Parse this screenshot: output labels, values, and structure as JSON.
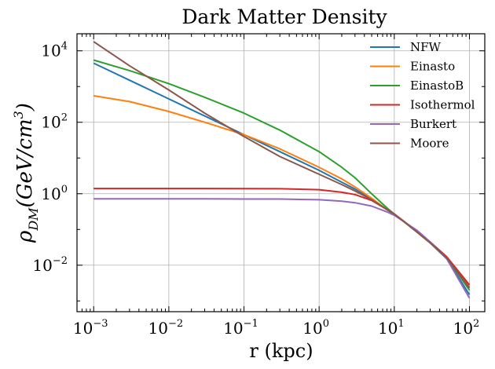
{
  "chart_data": {
    "type": "line",
    "title": "Dark Matter Density",
    "xlabel": "r (kpc)",
    "ylabel_parts": [
      "ρ",
      "DM",
      "(",
      "GeV/cm",
      "3",
      ")"
    ],
    "xscale": "log",
    "yscale": "log",
    "xlim": [
      0.0006,
      160
    ],
    "ylim": [
      0.0005,
      30000
    ],
    "xticks": [
      {
        "value": 0.001,
        "base": "10",
        "exp": "−3"
      },
      {
        "value": 0.01,
        "base": "10",
        "exp": "−2"
      },
      {
        "value": 0.1,
        "base": "10",
        "exp": "−1"
      },
      {
        "value": 1,
        "base": "10",
        "exp": "0"
      },
      {
        "value": 10,
        "base": "10",
        "exp": "1"
      },
      {
        "value": 100,
        "base": "10",
        "exp": "2"
      }
    ],
    "yticks": [
      {
        "value": 0.01,
        "base": "10",
        "exp": "−2"
      },
      {
        "value": 1,
        "base": "10",
        "exp": "0"
      },
      {
        "value": 100,
        "base": "10",
        "exp": "2"
      },
      {
        "value": 10000,
        "base": "10",
        "exp": "4"
      }
    ],
    "grid": true,
    "legend_position": "top-right",
    "x": [
      0.001,
      0.003,
      0.01,
      0.03,
      0.1,
      0.3,
      1,
      2,
      3,
      5,
      8,
      10,
      20,
      30,
      50,
      100
    ],
    "series": [
      {
        "name": "NFW",
        "color": "#1f77b4",
        "values": [
          4500,
          1500,
          450,
          150,
          45,
          15,
          4.5,
          2.1,
          1.35,
          0.7,
          0.36,
          0.27,
          0.085,
          0.042,
          0.015,
          0.0015
        ]
      },
      {
        "name": "Einasto",
        "color": "#ff7f0e",
        "values": [
          550,
          380,
          200,
          100,
          45,
          18,
          5.5,
          2.6,
          1.55,
          0.75,
          0.36,
          0.27,
          0.085,
          0.042,
          0.016,
          0.0025
        ]
      },
      {
        "name": "EinastoB",
        "color": "#2ca02c",
        "values": [
          5500,
          2800,
          1200,
          500,
          180,
          60,
          15,
          5.5,
          2.8,
          1.0,
          0.4,
          0.27,
          0.085,
          0.042,
          0.016,
          0.002
        ]
      },
      {
        "name": "Isothermol",
        "color": "#d62728",
        "values": [
          1.4,
          1.4,
          1.4,
          1.4,
          1.39,
          1.38,
          1.3,
          1.1,
          0.95,
          0.65,
          0.36,
          0.27,
          0.09,
          0.045,
          0.017,
          0.0028
        ]
      },
      {
        "name": "Burkert",
        "color": "#9467bd",
        "values": [
          0.72,
          0.72,
          0.72,
          0.72,
          0.71,
          0.71,
          0.68,
          0.62,
          0.56,
          0.45,
          0.31,
          0.25,
          0.095,
          0.045,
          0.015,
          0.0012
        ]
      },
      {
        "name": "Moore",
        "color": "#8c564b",
        "values": [
          18000,
          3800,
          800,
          180,
          40,
          11,
          3.5,
          1.8,
          1.2,
          0.68,
          0.36,
          0.27,
          0.085,
          0.042,
          0.016,
          0.0023
        ]
      }
    ]
  }
}
